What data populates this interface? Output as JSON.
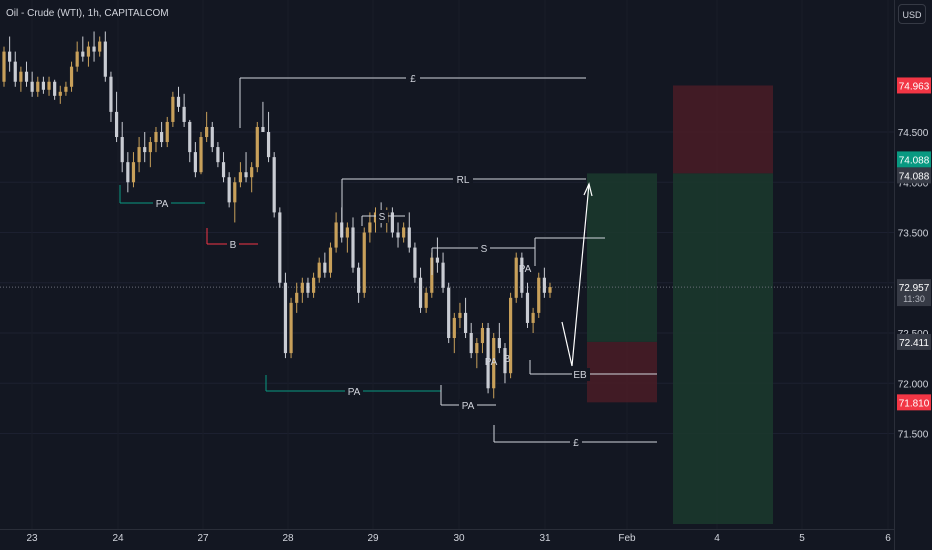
{
  "symbol_title": "Oil - Crude (WTI), 1h, CAPITALCOM",
  "currency": "USD",
  "price_axis": {
    "ticks": [
      "74.500",
      "74.000",
      "73.500",
      "72.500",
      "72.000",
      "71.500"
    ]
  },
  "price_badges": {
    "stop": {
      "label": "74.963",
      "value": 74.963,
      "color": "#f23645"
    },
    "target": {
      "label": "74.088",
      "value": 74.088,
      "color": "#089981"
    },
    "target_ref": {
      "label": "74.088",
      "value": 74.088,
      "color": "#363a45"
    },
    "last": {
      "label": "72.957",
      "value": 72.957,
      "countdown": "11:30",
      "color": "#363a45"
    },
    "entry": {
      "label": "72.411",
      "value": 72.411,
      "color": "#363a45"
    },
    "stop2": {
      "label": "71.810",
      "value": 71.81,
      "color": "#f23645"
    }
  },
  "time_axis": {
    "labels": [
      "23",
      "24",
      "27",
      "28",
      "29",
      "30",
      "31",
      "Feb",
      "4",
      "5",
      "6"
    ]
  },
  "annotations": [
    "£",
    "RL",
    "S",
    "S",
    "PA",
    "B",
    "PA",
    "PA",
    "PA",
    "PA",
    "B",
    "EB",
    "£"
  ],
  "colors": {
    "background": "#131722",
    "candle_up": "#c8a05a",
    "candle_down": "#c9ccd3",
    "profit_zone": "#1b3a2d",
    "loss_zone": "#4a1c26",
    "annotation_line": "#d1d4dc"
  },
  "chart_data": {
    "type": "candlestick",
    "symbol": "Oil - Crude (WTI)",
    "interval": "1h",
    "price_range": [
      71.0,
      75.5
    ],
    "x": [
      "23",
      "24",
      "27",
      "28",
      "29",
      "30",
      "31",
      "Feb",
      "4",
      "5",
      "6"
    ],
    "levels": {
      "stop_loss": 74.963,
      "take_profit": 74.088,
      "last_price": 72.957,
      "entry": 72.411,
      "stop_loss_2": 71.81
    },
    "ohlc": [
      [
        75.0,
        75.35,
        74.95,
        75.3
      ],
      [
        75.3,
        75.45,
        75.1,
        75.2
      ],
      [
        75.2,
        75.3,
        74.95,
        75.0
      ],
      [
        75.0,
        75.15,
        74.9,
        75.1
      ],
      [
        75.1,
        75.2,
        74.95,
        75.0
      ],
      [
        75.0,
        75.1,
        74.85,
        74.9
      ],
      [
        74.9,
        75.05,
        74.85,
        75.0
      ],
      [
        75.0,
        75.05,
        74.88,
        74.92
      ],
      [
        74.92,
        75.05,
        74.86,
        75.0
      ],
      [
        75.0,
        75.02,
        74.82,
        74.86
      ],
      [
        74.86,
        74.96,
        74.78,
        74.9
      ],
      [
        74.9,
        75.0,
        74.86,
        74.95
      ],
      [
        74.95,
        75.2,
        74.9,
        75.15
      ],
      [
        75.15,
        75.4,
        75.1,
        75.3
      ],
      [
        75.3,
        75.45,
        75.2,
        75.25
      ],
      [
        75.25,
        75.4,
        75.15,
        75.35
      ],
      [
        75.35,
        75.5,
        75.2,
        75.3
      ],
      [
        75.3,
        75.45,
        75.25,
        75.4
      ],
      [
        75.4,
        75.5,
        75.0,
        75.05
      ],
      [
        75.05,
        75.1,
        74.6,
        74.7
      ],
      [
        74.7,
        74.9,
        74.4,
        74.45
      ],
      [
        74.45,
        74.6,
        74.1,
        74.2
      ],
      [
        74.2,
        74.3,
        73.9,
        74.0
      ],
      [
        74.0,
        74.3,
        73.95,
        74.2
      ],
      [
        74.2,
        74.45,
        74.1,
        74.35
      ],
      [
        74.35,
        74.5,
        74.2,
        74.3
      ],
      [
        74.3,
        74.45,
        74.15,
        74.4
      ],
      [
        74.4,
        74.55,
        74.3,
        74.5
      ],
      [
        74.5,
        74.6,
        74.35,
        74.4
      ],
      [
        74.4,
        74.65,
        74.35,
        74.6
      ],
      [
        74.6,
        74.9,
        74.55,
        74.85
      ],
      [
        74.85,
        74.95,
        74.7,
        74.75
      ],
      [
        74.75,
        74.88,
        74.55,
        74.6
      ],
      [
        74.6,
        74.62,
        74.2,
        74.3
      ],
      [
        74.3,
        74.4,
        74.05,
        74.1
      ],
      [
        74.1,
        74.5,
        74.08,
        74.45
      ],
      [
        74.45,
        74.7,
        74.4,
        74.55
      ],
      [
        74.55,
        74.6,
        74.3,
        74.35
      ],
      [
        74.35,
        74.4,
        74.15,
        74.2
      ],
      [
        74.2,
        74.3,
        74.0,
        74.05
      ],
      [
        74.05,
        74.1,
        73.75,
        73.8
      ],
      [
        73.8,
        74.05,
        73.6,
        74.0
      ],
      [
        74.0,
        74.2,
        73.95,
        74.1
      ],
      [
        74.1,
        74.3,
        74.0,
        74.05
      ],
      [
        74.05,
        74.2,
        73.9,
        74.15
      ],
      [
        74.15,
        74.6,
        74.1,
        74.55
      ],
      [
        74.55,
        74.8,
        74.5,
        74.5
      ],
      [
        74.5,
        74.7,
        74.2,
        74.25
      ],
      [
        74.25,
        74.3,
        73.65,
        73.7
      ],
      [
        73.7,
        73.75,
        72.95,
        73.0
      ],
      [
        73.0,
        73.1,
        72.25,
        72.3
      ],
      [
        72.3,
        72.85,
        72.25,
        72.8
      ],
      [
        72.8,
        73.0,
        72.7,
        72.9
      ],
      [
        72.9,
        73.05,
        72.8,
        73.0
      ],
      [
        73.0,
        73.05,
        72.85,
        72.9
      ],
      [
        72.9,
        73.1,
        72.85,
        73.05
      ],
      [
        73.05,
        73.25,
        73.0,
        73.2
      ],
      [
        73.2,
        73.3,
        73.05,
        73.1
      ],
      [
        73.1,
        73.4,
        73.05,
        73.35
      ],
      [
        73.35,
        73.7,
        73.3,
        73.6
      ],
      [
        73.6,
        73.75,
        73.4,
        73.45
      ],
      [
        73.45,
        73.6,
        73.3,
        73.55
      ],
      [
        73.55,
        73.65,
        73.1,
        73.15
      ],
      [
        73.15,
        73.2,
        72.8,
        72.9
      ],
      [
        72.9,
        73.55,
        72.85,
        73.5
      ],
      [
        73.5,
        73.7,
        73.4,
        73.6
      ],
      [
        73.6,
        73.75,
        73.5,
        73.7
      ],
      [
        73.7,
        73.8,
        73.55,
        73.6
      ],
      [
        73.6,
        73.75,
        73.5,
        73.7
      ],
      [
        73.7,
        73.75,
        73.45,
        73.5
      ],
      [
        73.5,
        73.6,
        73.35,
        73.45
      ],
      [
        73.45,
        73.6,
        73.4,
        73.55
      ],
      [
        73.55,
        73.7,
        73.3,
        73.35
      ],
      [
        73.35,
        73.4,
        73.0,
        73.05
      ],
      [
        73.05,
        73.15,
        72.7,
        72.75
      ],
      [
        72.75,
        72.95,
        72.7,
        72.9
      ],
      [
        72.9,
        73.3,
        72.85,
        73.25
      ],
      [
        73.25,
        73.45,
        73.1,
        73.2
      ],
      [
        73.2,
        73.3,
        72.9,
        72.95
      ],
      [
        72.95,
        73.0,
        72.4,
        72.45
      ],
      [
        72.45,
        72.7,
        72.3,
        72.65
      ],
      [
        72.65,
        72.8,
        72.55,
        72.7
      ],
      [
        72.7,
        72.85,
        72.45,
        72.5
      ],
      [
        72.5,
        72.6,
        72.25,
        72.3
      ],
      [
        72.3,
        72.45,
        72.15,
        72.4
      ],
      [
        72.4,
        72.6,
        72.3,
        72.55
      ],
      [
        72.55,
        72.6,
        71.9,
        71.95
      ],
      [
        71.95,
        72.5,
        71.85,
        72.45
      ],
      [
        72.45,
        72.6,
        72.3,
        72.35
      ],
      [
        72.35,
        72.4,
        72.0,
        72.1
      ],
      [
        72.1,
        72.9,
        72.05,
        72.85
      ],
      [
        72.85,
        73.3,
        72.8,
        73.25
      ],
      [
        73.25,
        73.3,
        72.85,
        72.9
      ],
      [
        72.9,
        73.0,
        72.55,
        72.6
      ],
      [
        72.6,
        72.75,
        72.5,
        72.7
      ],
      [
        72.7,
        73.1,
        72.65,
        73.05
      ],
      [
        73.05,
        73.15,
        72.85,
        72.9
      ],
      [
        72.9,
        73.0,
        72.85,
        72.957
      ]
    ]
  }
}
